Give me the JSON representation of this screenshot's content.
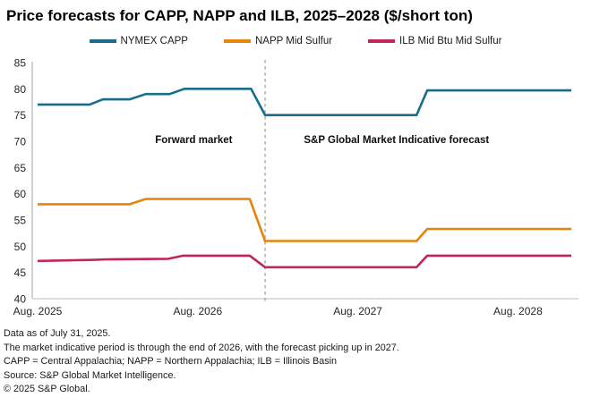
{
  "title": "Price forecasts for CAPP, NAPP and ILB, 2025–2028 ($/short ton)",
  "legend": [
    {
      "label": "NYMEX CAPP",
      "color": "#186c8c"
    },
    {
      "label": "NAPP Mid Sulfur",
      "color": "#e8830c"
    },
    {
      "label": "ILB Mid Btu Mid Sulfur",
      "color": "#c2255c"
    }
  ],
  "footnotes": [
    "Data as of July 31, 2025.",
    "The market indicative period is through the end of 2026, with the forecast picking up in 2027.",
    "CAPP = Central Appalachia; NAPP = Northern Appalachia; ILB = Illinois Basin",
    "Source: S&P Global Market Intelligence.",
    "© 2025 S&P Global."
  ],
  "chart_data": {
    "type": "line",
    "title": "Price forecasts for CAPP, NAPP and ILB, 2025–2028 ($/short ton)",
    "xlabel": "",
    "ylabel": "$/short ton",
    "x_axis": {
      "unit": "months since Aug. 2025",
      "range": [
        0,
        40
      ],
      "tick_positions": [
        0,
        12,
        24,
        36
      ],
      "tick_labels": [
        "Aug. 2025",
        "Aug. 2026",
        "Aug. 2027",
        "Aug. 2028"
      ]
    },
    "y_axis": {
      "range": [
        40,
        85
      ],
      "ticks": [
        40,
        45,
        50,
        55,
        60,
        65,
        70,
        75,
        80,
        85
      ]
    },
    "grid": false,
    "legend_position": "top",
    "divider": {
      "x": 17.05,
      "style": "dashed",
      "color": "#a8a8a8"
    },
    "annotations": [
      {
        "text": "Forward market",
        "x": 11.7,
        "y": 70.3
      },
      {
        "text": "S&P Global Market Indicative forecast",
        "x": 26.9,
        "y": 70.3
      }
    ],
    "series": [
      {
        "name": "NYMEX CAPP",
        "color": "#186c8c",
        "points": [
          [
            0,
            77
          ],
          [
            3.9,
            77
          ],
          [
            4.9,
            78
          ],
          [
            6.9,
            78
          ],
          [
            8.1,
            79
          ],
          [
            9.9,
            79
          ],
          [
            11,
            80
          ],
          [
            16,
            80
          ],
          [
            17.05,
            75
          ],
          [
            28.4,
            75
          ],
          [
            29.2,
            79.7
          ],
          [
            40,
            79.7
          ]
        ]
      },
      {
        "name": "NAPP Mid Sulfur",
        "color": "#e8830c",
        "points": [
          [
            0,
            58
          ],
          [
            6.9,
            58
          ],
          [
            8.1,
            59
          ],
          [
            15.9,
            59
          ],
          [
            17.05,
            51
          ],
          [
            28.4,
            51
          ],
          [
            29.2,
            53.3
          ],
          [
            40,
            53.3
          ]
        ]
      },
      {
        "name": "ILB Mid Btu Mid Sulfur",
        "color": "#c2255c",
        "points": [
          [
            0,
            47.2
          ],
          [
            4.2,
            47.4
          ],
          [
            5.2,
            47.5
          ],
          [
            9.8,
            47.6
          ],
          [
            10.9,
            48.2
          ],
          [
            15.9,
            48.2
          ],
          [
            17.05,
            46
          ],
          [
            28.4,
            46
          ],
          [
            29.2,
            48.2
          ],
          [
            40,
            48.2
          ]
        ]
      }
    ]
  }
}
